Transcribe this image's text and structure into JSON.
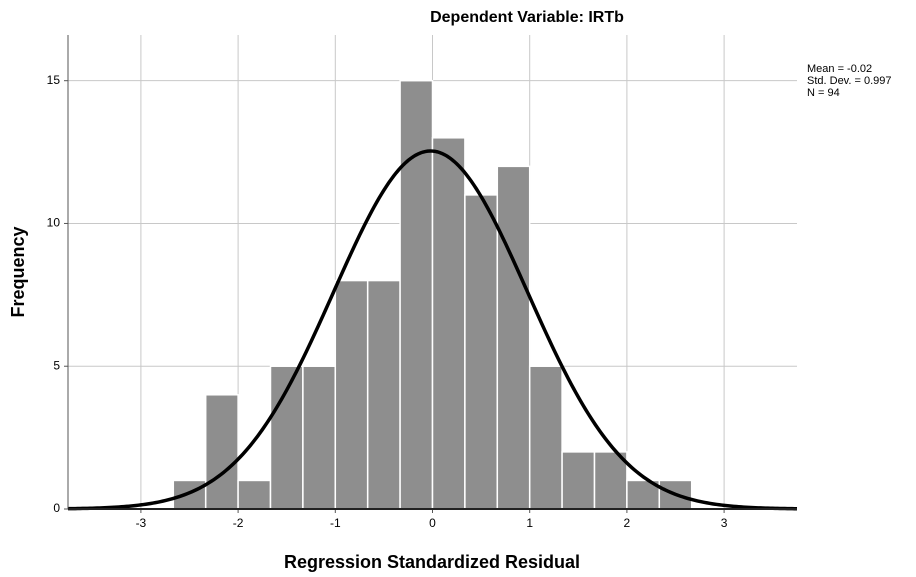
{
  "chart_data": {
    "type": "histogram",
    "title": "Dependent Variable: IRTb",
    "x_label": "Regression Standardized Residual",
    "y_label": "Frequency",
    "bins": [
      -2.6667,
      -2.3333,
      -2,
      -1.6667,
      -1.3333,
      -1,
      -0.6667,
      -0.3333,
      0,
      0.3333,
      0.6667,
      1,
      1.3333,
      1.6667,
      2,
      2.3333,
      2.6667
    ],
    "counts": [
      1,
      4,
      1,
      5,
      5,
      8,
      8,
      15,
      13,
      11,
      12,
      5,
      2,
      2,
      1,
      1
    ],
    "color": "#8e8e8e",
    "curve": {
      "mean": -0.02,
      "sd": 0.997,
      "n": 94,
      "color": "#000000"
    },
    "stats": [
      "Mean = -0.02",
      "Std. Dev. = 0.997",
      "N = 94"
    ],
    "xlim": [
      -3.75,
      3.75
    ],
    "xticks": [
      -3,
      -2,
      -1,
      0,
      1,
      2,
      3
    ],
    "ylim": [
      0,
      16.6
    ],
    "yticks": [
      0,
      5,
      10,
      15
    ],
    "grid": true
  }
}
